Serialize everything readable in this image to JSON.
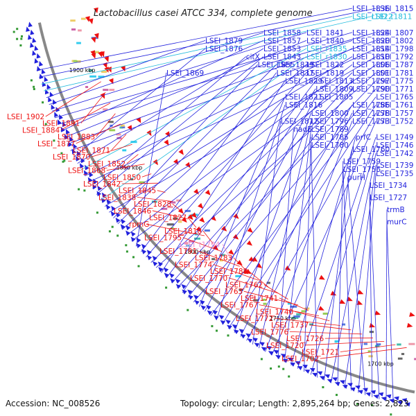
{
  "title": "Lactobacillus casei ATCC 334, complete genome",
  "accession": "Accession: NC_008526",
  "topology": "Topology: circular; Length: 2,895,264 bp; Genes: 2,823",
  "colors": {
    "forward": "#2222dd",
    "reverse": "#ee1111",
    "rna": "#22bbdd",
    "trna_rev": "#ee88cc",
    "ring": "#888888"
  },
  "ticks": [
    {
      "label": "1900 kbp",
      "pos": 0.1
    },
    {
      "label": "1850 kbp",
      "pos": 0.3
    },
    {
      "label": "1800 kbp",
      "pos": 0.5
    },
    {
      "label": "1750 kbp",
      "pos": 0.7
    },
    {
      "label": "1700 kbp",
      "pos": 0.9
    }
  ],
  "forward_labels": [
    {
      "text": "LSEI_1836",
      "col": 3,
      "row": 0
    },
    {
      "text": "LSEI_1815",
      "col": 4,
      "row": 0
    },
    {
      "text": "LSEI_r1822",
      "col": 3,
      "row": 1,
      "kind": "rna"
    },
    {
      "text": "LSEI_t1811",
      "col": 4,
      "row": 1,
      "kind": "rna"
    },
    {
      "text": "LSEI_1879",
      "col": 0,
      "row": 4
    },
    {
      "text": "LSEI_1858",
      "col": 1,
      "row": 3
    },
    {
      "text": "LSEI_1841",
      "col": 2,
      "row": 3
    },
    {
      "text": "LSEI_1824",
      "col": 3,
      "row": 3
    },
    {
      "text": "LSEI_1807",
      "col": 4,
      "row": 3
    },
    {
      "text": "LSEI_1857",
      "col": 1,
      "row": 4
    },
    {
      "text": "LSEI_1840",
      "col": 2,
      "row": 4
    },
    {
      "text": "LSEI_1820",
      "col": 3,
      "row": 4
    },
    {
      "text": "LSEI_1802",
      "col": 4,
      "row": 4
    },
    {
      "text": "LSEI_1876",
      "col": 0,
      "row": 5
    },
    {
      "text": "LSEI_1853",
      "col": 1,
      "row": 5
    },
    {
      "text": "LSEI_r1835",
      "col": 2,
      "row": 5,
      "kind": "rna"
    },
    {
      "text": "LSEI_1814",
      "col": 3,
      "row": 5
    },
    {
      "text": "LSEI_1798",
      "col": 4,
      "row": 5
    },
    {
      "text": "citX",
      "col": 0.7,
      "row": 6
    },
    {
      "text": "LSEI_1843",
      "col": 1,
      "row": 6
    },
    {
      "text": "LSEI_r1830",
      "col": 2,
      "row": 6,
      "kind": "rna"
    },
    {
      "text": "LSEI_1810",
      "col": 3,
      "row": 6
    },
    {
      "text": "LSEI_1792",
      "col": 4,
      "row": 6
    },
    {
      "text": "LSEI_1855",
      "col": 0.9,
      "row": 7
    },
    {
      "text": "LSEI_1839",
      "col": 1.3,
      "row": 7
    },
    {
      "text": "LSEI_1822",
      "col": 2,
      "row": 7
    },
    {
      "text": "LSEI_1806",
      "col": 3,
      "row": 7
    },
    {
      "text": "LSEI_1787",
      "col": 4,
      "row": 7
    },
    {
      "text": "LSEI_1869",
      "col": -0.5,
      "row": 8
    },
    {
      "text": "LSEI_1837",
      "col": 1.3,
      "row": 8
    },
    {
      "text": "LSEI_1819",
      "col": 2,
      "row": 8
    },
    {
      "text": "LSEI_1801",
      "col": 3,
      "row": 8
    },
    {
      "text": "LSEI_1781",
      "col": 4,
      "row": 8
    },
    {
      "text": "LSEI_1829",
      "col": 1.5,
      "row": 9
    },
    {
      "text": "LSEI_1813",
      "col": 2.2,
      "row": 9
    },
    {
      "text": "LSEI_1797",
      "col": 3,
      "row": 9
    },
    {
      "text": "LSEI_1775",
      "col": 4,
      "row": 9
    },
    {
      "text": "LSEI_1809",
      "col": 2.2,
      "row": 10
    },
    {
      "text": "LSEI_1790",
      "col": 3,
      "row": 10
    },
    {
      "text": "LSEI_1771",
      "col": 4,
      "row": 10
    },
    {
      "text": "LSEI_1821",
      "col": 1.5,
      "row": 11
    },
    {
      "text": "LSEI_1805",
      "col": 2.2,
      "row": 11
    },
    {
      "text": "LSEI_1765",
      "col": 4,
      "row": 11
    },
    {
      "text": "LSEI_1816",
      "col": 1.5,
      "row": 12
    },
    {
      "text": "LSEI_1786",
      "col": 3,
      "row": 12
    },
    {
      "text": "LSEI_1761",
      "col": 4,
      "row": 12
    },
    {
      "text": "LSEI_1800",
      "col": 2.1,
      "row": 13
    },
    {
      "text": "LSEI_1778",
      "col": 3,
      "row": 13
    },
    {
      "text": "LSEI_1757",
      "col": 4,
      "row": 13
    },
    {
      "text": "LSEI_1812",
      "col": 1.4,
      "row": 14
    },
    {
      "text": "LSEI_1796",
      "col": 2.1,
      "row": 14
    },
    {
      "text": "LSEI_1773",
      "col": 3,
      "row": 14
    },
    {
      "text": "LSEI_1752",
      "col": 4,
      "row": 14
    },
    {
      "text": "nadE",
      "col": 1.7,
      "row": 15
    },
    {
      "text": "LSEI_1789",
      "col": 2.1,
      "row": 15
    },
    {
      "text": "prfC",
      "col": 3.1,
      "row": 16
    },
    {
      "text": "LSEI_1749",
      "col": 4,
      "row": 16
    },
    {
      "text": "LSEI_1785",
      "col": 2.1,
      "row": 16
    },
    {
      "text": "LSEI_1746",
      "col": 4,
      "row": 17
    },
    {
      "text": "LSEI_1780",
      "col": 2.1,
      "row": 17
    },
    {
      "text": "LSEI_1760",
      "col": 3,
      "row": 17.5
    },
    {
      "text": "LSEI_1742",
      "col": 4,
      "row": 18
    },
    {
      "text": "LSEI_1759",
      "col": 2.8,
      "row": 19
    },
    {
      "text": "LSEI_1739",
      "col": 4,
      "row": 19.5
    },
    {
      "text": "LSEI_1756",
      "col": 2.8,
      "row": 20
    },
    {
      "text": "LSEI_1735",
      "col": 4,
      "row": 20.5
    },
    {
      "text": "purH",
      "col": 2.9,
      "row": 21
    },
    {
      "text": "LSEI_1734",
      "col": 3.5,
      "row": 22
    },
    {
      "text": "LSEI_1727",
      "col": 3.5,
      "row": 23.5
    },
    {
      "text": "trmB",
      "col": 4,
      "row": 25
    },
    {
      "text": "murC",
      "col": 4,
      "row": 26.5
    }
  ],
  "reverse_labels": [
    "LSEI_1902",
    "LSEI_1891",
    "LSEI_1884",
    "LSEI_1883",
    "LSEI_1877",
    "LSEI_1871",
    "LSEI_1870",
    "LSEI_1852",
    "LSEI_1868",
    "LSEI_1850",
    "LSEI_1842",
    "LSEI_1845",
    "LSEI_1838",
    "LSEI_1828",
    "LSEI_1846",
    "LSEI_1827",
    "rpmG",
    "LSEI_1818",
    "LSEI_1795",
    "LSEI_t1794",
    "LSEI_1791",
    "LSEI_1783",
    "LSEI_1774",
    "LSEI_1788",
    "LSEI_1770",
    "LSEI_1762",
    "LSEI_1763",
    "LSEI_1741",
    "LSEI_1767",
    "LSEI_1740",
    "LSEI_1772",
    "LSEI_1737",
    "LSEI_1776",
    "LSEI_1726",
    "LSEI_1720",
    "LSEI_1721",
    "LSEI_1702"
  ]
}
